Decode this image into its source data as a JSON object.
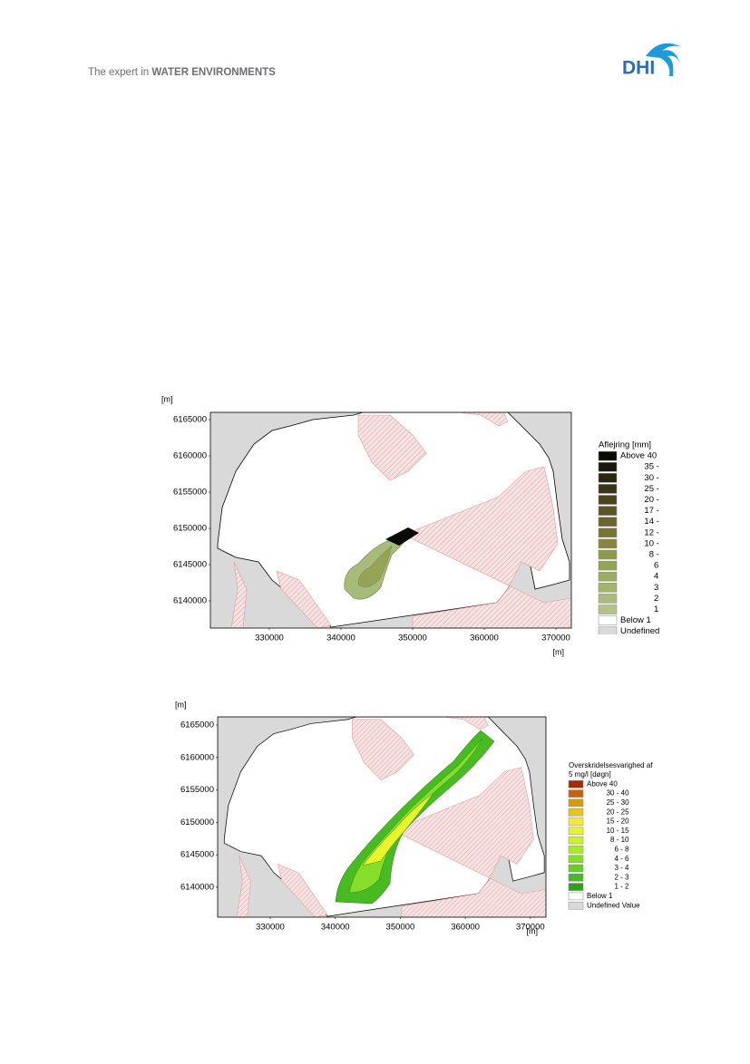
{
  "header": {
    "tagline": "The expert in",
    "tagline_bold": "WATER ENVIRONMENTS",
    "logo": "DHI"
  },
  "figures": [
    {
      "unit_y": "[m]",
      "unit_x": "[m]",
      "yticks": [
        6165000,
        6160000,
        6155000,
        6150000,
        6145000,
        6140000
      ],
      "xticks": [
        330000,
        340000,
        350000,
        360000,
        370000
      ],
      "legend": {
        "title": [
          "Aflejring [mm]"
        ],
        "items": [
          {
            "label": "Above 40",
            "color": "#0a0a06"
          },
          {
            "label": "35 - 40",
            "color": "#1a170c"
          },
          {
            "label": "30 - 35",
            "color": "#2a2612"
          },
          {
            "label": "25 - 30",
            "color": "#3a3518"
          },
          {
            "label": "20 - 25",
            "color": "#4a451f"
          },
          {
            "label": "17 - 20",
            "color": "#5a5526"
          },
          {
            "label": "14 - 17",
            "color": "#6a6530"
          },
          {
            "label": "12 - 14",
            "color": "#797534"
          },
          {
            "label": "10 - 12",
            "color": "#88863d"
          },
          {
            "label": "8 - 10",
            "color": "#8e9a48"
          },
          {
            "label": "6 - 8",
            "color": "#95a454"
          },
          {
            "label": "4 - 6",
            "color": "#9bad62"
          },
          {
            "label": "3 - 4",
            "color": "#a3b46e"
          },
          {
            "label": "2 - 3",
            "color": "#abbb7c"
          },
          {
            "label": "1 - 2",
            "color": "#b3c288"
          },
          {
            "label": "Below 1",
            "color": "#ffffff"
          },
          {
            "label": "Undefined Value",
            "color": "#d9d9d9"
          }
        ]
      }
    },
    {
      "unit_y": "[m]",
      "unit_x": "[m]",
      "yticks": [
        6165000,
        6160000,
        6155000,
        6150000,
        6145000,
        6140000
      ],
      "xticks": [
        330000,
        340000,
        350000,
        360000,
        370000
      ],
      "legend": {
        "title": [
          "Overskridelsesvarighed af",
          "5 mg/l [døgn]"
        ],
        "items": [
          {
            "label": "Above 40",
            "color": "#a52a0a"
          },
          {
            "label": "30 - 40",
            "color": "#c8620c"
          },
          {
            "label": "25 - 30",
            "color": "#d99a10"
          },
          {
            "label": "20 - 25",
            "color": "#e8c418"
          },
          {
            "label": "15 - 20",
            "color": "#f6ea2a"
          },
          {
            "label": "10 - 15",
            "color": "#e8f52a"
          },
          {
            "label": "8 - 10",
            "color": "#c9f22a"
          },
          {
            "label": "6 - 8",
            "color": "#a6ea2a"
          },
          {
            "label": "4 - 6",
            "color": "#86de2a"
          },
          {
            "label": "3 - 4",
            "color": "#66cf26"
          },
          {
            "label": "2 - 3",
            "color": "#48bb22"
          },
          {
            "label": "1 - 2",
            "color": "#2ea01c"
          },
          {
            "label": "Below 1",
            "color": "#ffffff"
          },
          {
            "label": "Undefined Value",
            "color": "#d9d9d9"
          }
        ]
      }
    }
  ]
}
